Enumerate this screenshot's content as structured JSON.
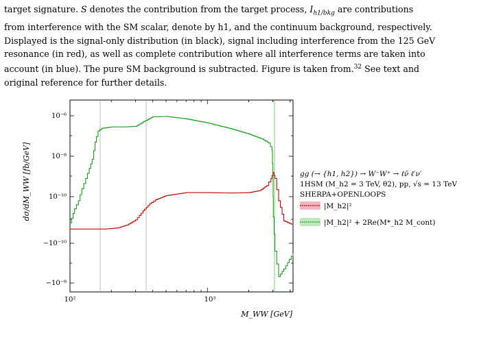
{
  "caption": {
    "line1_a": "target signature. ",
    "line1_S": "S",
    "line1_b": " denotes the contribution from the target process, ",
    "line1_I": "I",
    "line1_Isub": "h1/bkg",
    "line1_c": " are contributions",
    "line2": "from interference with the SM scalar, denote by h1, and the continuum background, respectively.",
    "line3": "Displayed is the signal-only distribution (in black), signal including interference from the 125 GeV",
    "line4": "resonance (in red), as well as complete contribution where all interference terms are taken into",
    "line5": "account (in blue). The pure SM background is subtracted. Figure is taken from.",
    "line5_ref": "32",
    "line5_b": " See text and",
    "line6": "original reference for further details."
  },
  "figure": {
    "ylabel": "dσ/dM_WW  [fb/GeV]",
    "xlabel": "M_WW [GeV]",
    "legend": {
      "process": "gg (→ {h1, h2}) → W⁻W⁺ → ℓν̄ ℓ′ν′",
      "model": "1HSM (M_h2 = 3 TeV, θ2),  pp,  √s = 13 TeV",
      "generator": "SHERPA+OPENLOOPS",
      "entry_red": "|M_h2|²",
      "entry_green": "|M_h2|² + 2Re(M*_h2 M_cont)"
    },
    "colors": {
      "red": "#cc0000",
      "green": "#1a9a1a",
      "red_band": "#f2b6c0",
      "green_band": "#bfe8bf",
      "vline": "#999999",
      "vline_green": "#33cc33"
    }
  },
  "chart_data": {
    "type": "line",
    "title": "",
    "xlabel": "M_WW [GeV]",
    "ylabel": "dσ/dM_WW [fb/GeV]",
    "xscale": "log",
    "yscale": "symlog",
    "xlim": [
      100,
      4200
    ],
    "ytick_labels": [
      "10⁻⁶",
      "10⁻⁸",
      "10⁻¹⁰",
      "−10⁻¹⁰",
      "−10⁻⁸"
    ],
    "xtick_labels": [
      "10²",
      "10³"
    ],
    "vertical_lines_x": [
      160,
      350,
      3000
    ],
    "legend_placement": "right, outside",
    "series": [
      {
        "name": "|M_h2|²",
        "color": "#cc0000",
        "x": [
          100,
          150,
          180,
          220,
          260,
          300,
          340,
          380,
          420,
          500,
          700,
          1000,
          1500,
          2000,
          2400,
          2700,
          2900,
          3000,
          3100,
          3300,
          3600,
          4200
        ],
        "log10y": [
          -11.6,
          -11.6,
          -11.6,
          -11.55,
          -11.4,
          -11.15,
          -10.7,
          -10.35,
          -10.15,
          -9.95,
          -9.8,
          -9.8,
          -9.82,
          -9.8,
          -9.7,
          -9.45,
          -9.1,
          -8.8,
          -9.1,
          -10.2,
          -11.2,
          -11.4
        ]
      },
      {
        "name": "|M_h2|² + 2Re(M*_h2 M_cont)",
        "color": "#1a9a1a",
        "x": [
          100,
          108,
          115,
          122,
          130,
          138,
          145,
          152,
          160,
          170,
          200,
          250,
          300,
          340,
          400,
          500,
          700,
          1000,
          1500,
          2000,
          2500,
          2800,
          2950,
          3000,
          3020,
          3100,
          3300,
          3600,
          4200
        ],
        "log10y": [
          -11.3,
          -10.6,
          -10.2,
          -9.6,
          -9.1,
          -8.6,
          -8.15,
          -7.3,
          -6.75,
          -6.62,
          -6.55,
          -6.55,
          -6.52,
          -6.3,
          -6.05,
          -6.03,
          -6.15,
          -6.35,
          -6.65,
          -6.9,
          -7.15,
          -7.35,
          -7.7,
          -9.0,
          -11.0,
          -13.2,
          -14.5,
          -14.1,
          -13.3
        ]
      }
    ]
  }
}
